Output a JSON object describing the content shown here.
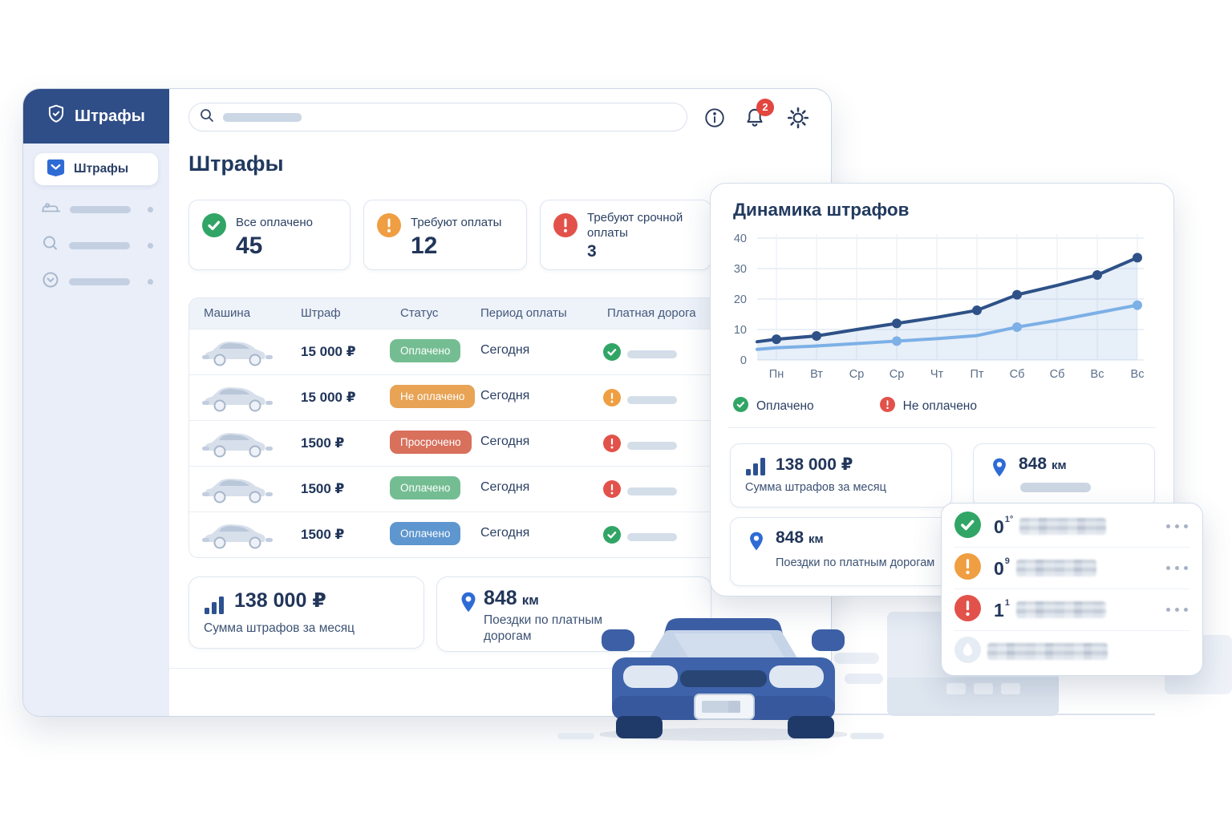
{
  "app": {
    "brand": "Штрафы"
  },
  "sidebar": {
    "active_item": "Штрафы",
    "skeleton_items": [
      {
        "icon": "vehicle"
      },
      {
        "icon": "search"
      },
      {
        "icon": "clock"
      }
    ]
  },
  "topbar": {
    "search_value": "",
    "notification_count": "2"
  },
  "page": {
    "title": "Штрафы"
  },
  "stats": [
    {
      "label": "Все оплачено",
      "value": "45",
      "status": "success"
    },
    {
      "label": "Требуют оплаты",
      "value": "12",
      "status": "warning"
    },
    {
      "label": "Требуют срочной оплаты",
      "value": "3",
      "status": "danger"
    }
  ],
  "table": {
    "columns": [
      "Машина",
      "Штраф",
      "Статус",
      "Период оплаты",
      "Платная дорога"
    ],
    "rows": [
      {
        "fine": "15 000 ₽",
        "status": "Оплачено",
        "status_color": "green",
        "period": "Сегодня",
        "toll": "success"
      },
      {
        "fine": "15 000 ₽",
        "status": "Не оплачено",
        "status_color": "orange",
        "period": "Сегодня",
        "toll": "warning"
      },
      {
        "fine": "1500 ₽",
        "status": "Просрочено",
        "status_color": "red",
        "period": "Сегодня",
        "toll": "danger"
      },
      {
        "fine": "1500 ₽",
        "status": "Оплачено",
        "status_color": "green",
        "period": "Сегодня",
        "toll": "danger"
      },
      {
        "fine": "1500 ₽",
        "status": "Оплачено",
        "status_color": "blue",
        "period": "Сегодня",
        "toll": "success"
      }
    ]
  },
  "summary_cards": {
    "month_sum": {
      "value": "138 000 ₽",
      "label": "Сумма штрафов за месяц"
    },
    "toll_distance": {
      "value": "848",
      "unit": "км",
      "label": "Поездки по платным дорогам"
    }
  },
  "panel": {
    "title": "Динамика штрафов",
    "legend": [
      {
        "label": "Оплачено",
        "status": "success"
      },
      {
        "label": "Не оплачено",
        "status": "danger"
      }
    ],
    "cards": {
      "month_sum": {
        "value": "138 000 ₽",
        "label": "Сумма штрафов за месяц"
      },
      "distance_top": {
        "value": "848",
        "unit": "км"
      },
      "distance_bottom": {
        "value": "848",
        "unit": "км",
        "label": "Поездки по платным дорогам"
      }
    }
  },
  "chart_data": {
    "type": "line",
    "title": "Динамика штрафов",
    "x_labels": [
      "Пн",
      "Вт",
      "Ср",
      "Ср",
      "Чт",
      "Пт",
      "Сб",
      "Сб",
      "Вс",
      "Вс"
    ],
    "ylim": [
      0,
      40
    ],
    "yticks": [
      0,
      10,
      20,
      30,
      40
    ],
    "grid": true,
    "legend_position": "bottom",
    "series": [
      {
        "name": "Не оплачено",
        "color": "#2e5187",
        "edge_value": 6,
        "values": [
          6.8,
          7.9,
          10,
          12,
          14,
          16.3,
          21.4,
          24.5,
          27.9,
          33.6
        ],
        "dot_indices": [
          0,
          1,
          3,
          5,
          6,
          8,
          9
        ],
        "area_fill": true
      },
      {
        "name": "Оплачено",
        "color": "#7cb0e6",
        "edge_value": 3.5,
        "values": [
          4,
          4.6,
          5.4,
          6.2,
          7,
          8,
          10.8,
          13,
          15.5,
          18
        ],
        "dot_indices": [
          3,
          6,
          9
        ],
        "area_fill": false
      }
    ]
  },
  "popover": {
    "rows": [
      {
        "status": "success",
        "value": "0",
        "sup": "1°",
        "has_menu": true
      },
      {
        "status": "warning",
        "value": "0",
        "sup": "9",
        "has_menu": true
      },
      {
        "status": "danger",
        "value": "1",
        "sup": "1",
        "has_menu": true
      },
      {
        "status": "drop",
        "value": "",
        "sup": "",
        "has_menu": false
      }
    ]
  },
  "colors": {
    "accent_blue": "#2f6bd5",
    "navy_text": "#22365a",
    "sidebar_header": "#2f4d87",
    "success": "#31a565",
    "warning": "#ef9e42",
    "danger": "#e2524a",
    "badge_green": "#74bd92",
    "badge_orange": "#e8a355",
    "badge_red": "#d8705c",
    "badge_blue": "#5e96cf",
    "line_dark": "#2e5187",
    "line_light": "#7cb0e6",
    "notification_red": "#e2463f"
  }
}
